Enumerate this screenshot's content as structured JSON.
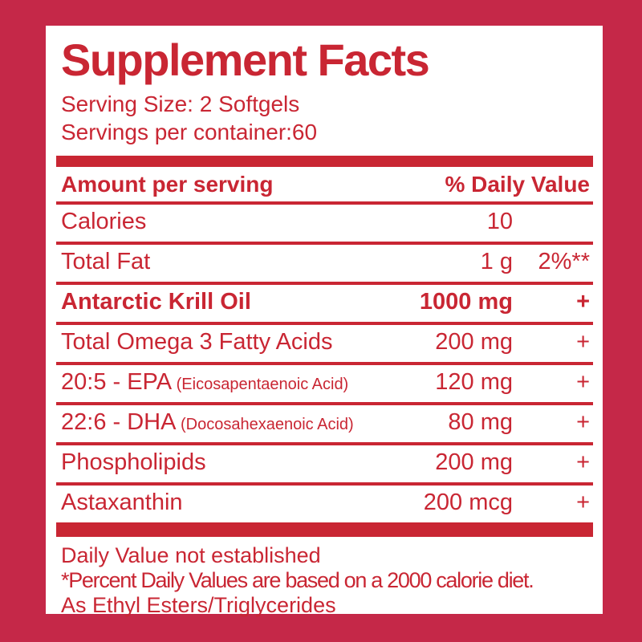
{
  "colors": {
    "background": "#C52848",
    "accent": "#C92633",
    "panel": "#FFFFFF"
  },
  "title": "Supplement Facts",
  "serving": {
    "size": "Serving Size: 2 Softgels",
    "per_container": "Servings per container:60"
  },
  "table": {
    "header": {
      "left": "Amount per serving",
      "right": "% Daily Value"
    },
    "rows": [
      {
        "name": "Calories",
        "name_note": "",
        "amount": "10",
        "dv": "",
        "bold": false
      },
      {
        "name": "Total Fat",
        "name_note": "",
        "amount": "1 g",
        "dv": "2%**",
        "bold": false
      },
      {
        "name": "Antarctic Krill Oil",
        "name_note": "",
        "amount": "1000 mg",
        "dv": "+",
        "bold": true
      },
      {
        "name": "Total Omega 3 Fatty Acids",
        "name_note": "",
        "amount": "200 mg",
        "dv": "+",
        "bold": false
      },
      {
        "name": "20:5 - EPA",
        "name_note": "(Eicosapentaenoic Acid)",
        "amount": "120 mg",
        "dv": "+",
        "bold": false
      },
      {
        "name": "22:6 - DHA",
        "name_note": "(Docosahexaenoic Acid)",
        "amount": "80 mg",
        "dv": "+",
        "bold": false
      },
      {
        "name": "Phospholipids",
        "name_note": "",
        "amount": "200 mg",
        "dv": "+",
        "bold": false
      },
      {
        "name": "Astaxanthin",
        "name_note": "",
        "amount": "200 mcg",
        "dv": "+",
        "bold": false
      }
    ]
  },
  "footnotes": [
    "Daily Value not established",
    "*Percent Daily Values are based on a 2000 calorie diet.",
    "As Ethyl Esters/Triglycerides"
  ]
}
